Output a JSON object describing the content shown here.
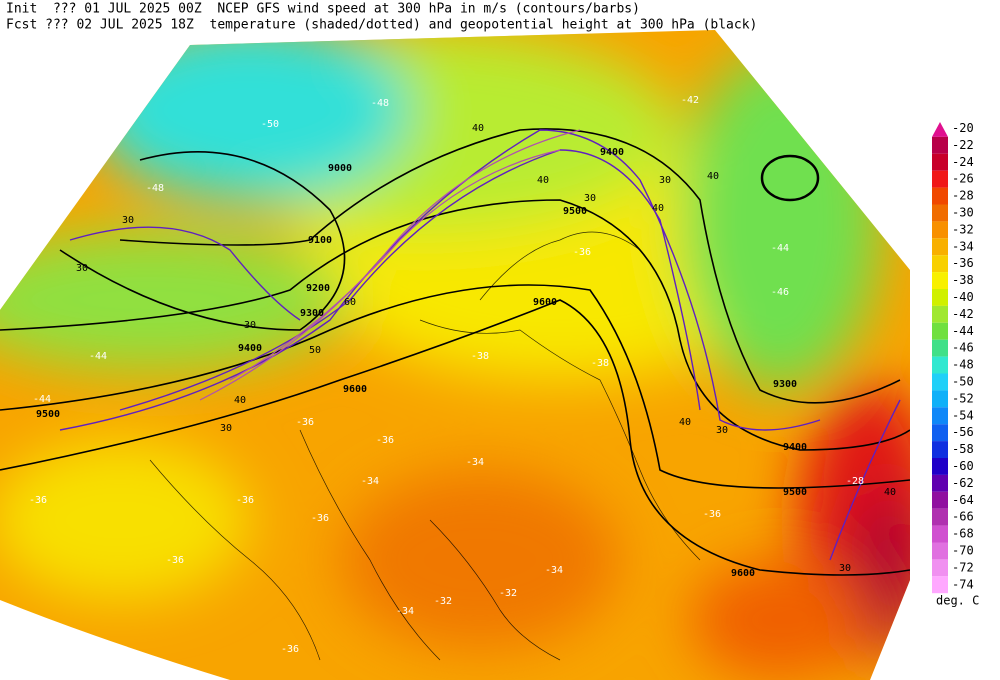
{
  "header": {
    "line1": "Init  ??? 01 JUL 2025 00Z  NCEP GFS wind speed at 300 hPa in m/s (contours/barbs)",
    "line2": "Fcst ??? 02 JUL 2025 18Z  temperature (shaded/dotted) and geopotential height at 300 hPa (black)"
  },
  "colorbar": {
    "labels": [
      -20,
      -22,
      -24,
      -26,
      -28,
      -30,
      -32,
      -34,
      -36,
      -38,
      -40,
      -42,
      -44,
      -46,
      -48,
      -50,
      -52,
      -54,
      -56,
      -58,
      -60,
      -62,
      -64,
      -66,
      -68,
      -70,
      -72,
      -74
    ],
    "colors": [
      "#e0108f",
      "#b80048",
      "#c8002a",
      "#f01818",
      "#f04800",
      "#f06c00",
      "#f89000",
      "#f8b000",
      "#f8d000",
      "#f8f000",
      "#d0f000",
      "#a0e830",
      "#70e040",
      "#40e088",
      "#30e8d0",
      "#20d0f8",
      "#10b0f8",
      "#1088f8",
      "#1060f0",
      "#1030e0",
      "#2000c8",
      "#6000b0",
      "#9010a0",
      "#b030b0",
      "#d050d0",
      "#e070e0",
      "#f090f0",
      "#ffa8ff"
    ],
    "unit": "deg. C"
  },
  "map": {
    "height_labels": [
      9000,
      9100,
      9200,
      9300,
      9400,
      9500,
      9600,
      9600,
      9500,
      9400,
      9300,
      9400,
      9500,
      9600
    ],
    "temperature_labels": [
      -50,
      -48,
      -48,
      -42,
      -44,
      -46,
      -44,
      -44,
      -36,
      -36,
      -36,
      -36,
      -36,
      -34,
      -34,
      -38,
      -38,
      -36,
      -36,
      -34,
      -32,
      -34,
      -36,
      -32,
      -28,
      -36
    ],
    "wind_labels": [
      30,
      30,
      30,
      30,
      40,
      50,
      60,
      40,
      40,
      30,
      30,
      40,
      40,
      30,
      40,
      40,
      30
    ]
  }
}
